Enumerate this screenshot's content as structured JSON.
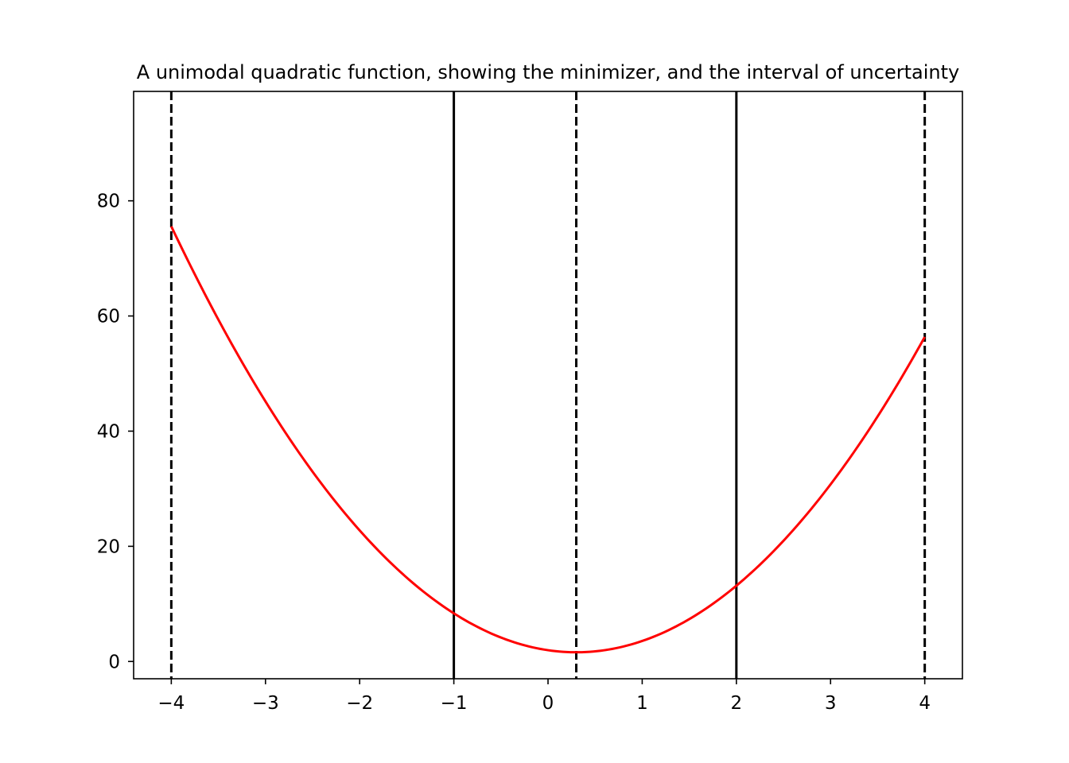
{
  "chart_data": {
    "type": "line",
    "title": "A unimodal quadratic function, showing the minimizer, and the interval of uncertainty",
    "xlabel": "",
    "ylabel": "",
    "xlim": [
      -4.4,
      4.4
    ],
    "ylim": [
      -3,
      99
    ],
    "x_ticks": [
      -4,
      -3,
      -2,
      -1,
      0,
      1,
      2,
      3,
      4
    ],
    "x_tick_labels": [
      "−4",
      "−3",
      "−2",
      "−1",
      "0",
      "1",
      "2",
      "3",
      "4"
    ],
    "y_ticks": [
      0,
      20,
      40,
      60,
      80
    ],
    "y_tick_labels": [
      "0",
      "20",
      "40",
      "60",
      "80"
    ],
    "grid": false,
    "series": [
      {
        "type": "line",
        "color": "#ff0000",
        "function": "4*(x-0.3)^2+1.6",
        "x_range": [
          -4,
          4
        ]
      }
    ],
    "vertical_lines": [
      {
        "x": -4,
        "style": "dashed",
        "color": "#000000"
      },
      {
        "x": -1,
        "style": "solid",
        "color": "#000000"
      },
      {
        "x": 0.3,
        "style": "dashed",
        "color": "#000000"
      },
      {
        "x": 2,
        "style": "solid",
        "color": "#000000"
      },
      {
        "x": 4,
        "style": "dashed",
        "color": "#000000"
      }
    ]
  }
}
